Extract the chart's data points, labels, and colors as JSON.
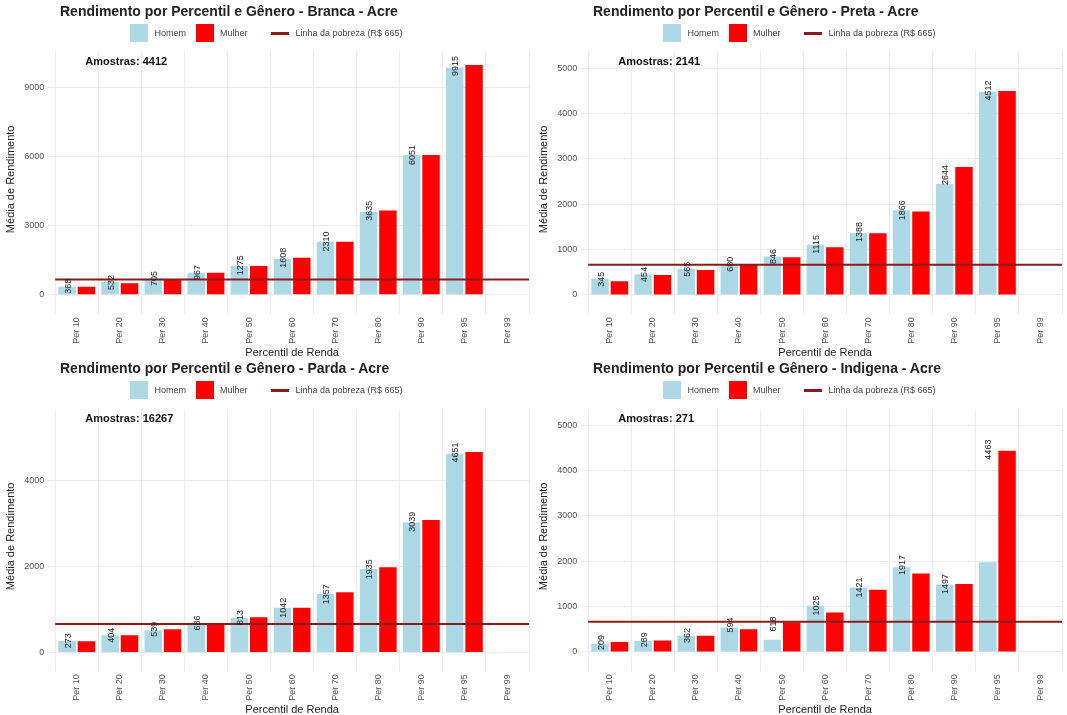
{
  "chart_data": [
    {
      "type": "bar",
      "title": "Rendimento por Percentil e Gênero - Branca - Acre",
      "xlabel": "Percentil de Renda",
      "ylabel": "Média de Rendimento",
      "categories": [
        "Per 10",
        "Per 20",
        "Per 30",
        "Per 40",
        "Per 50",
        "Per 60",
        "Per 70",
        "Per 80",
        "Per 90",
        "Per 95",
        "Per 99"
      ],
      "series": [
        {
          "name": "Homem",
          "color": "#add8e6",
          "values": [
            350,
            550,
            700,
            950,
            1250,
            1550,
            2300,
            3600,
            6050,
            9850,
            null
          ]
        },
        {
          "name": "Mulher",
          "color": "#ff0000",
          "values": [
            350,
            500,
            650,
            950,
            1250,
            1600,
            2300,
            3650,
            6050,
            9950,
            null
          ]
        }
      ],
      "ylim": [
        -500,
        10500
      ],
      "yticks": [
        0,
        3000,
        6000,
        9000
      ],
      "grid": true,
      "legend": "top",
      "ref_lines": [
        {
          "axis": "y",
          "value": 665,
          "label": "Linha da pobreza (R$ 665)",
          "color": "#8b1a1a"
        }
      ],
      "annotations": [
        "Amostras: 4412",
        {
          "text": "368",
          "x": "Per 10",
          "y": 368
        },
        {
          "text": "532",
          "x": "Per 20",
          "y": 532
        },
        {
          "text": "705",
          "x": "Per 30",
          "y": 705
        },
        {
          "text": "967",
          "x": "Per 40",
          "y": 967
        },
        {
          "text": "1275",
          "x": "Per 50",
          "y": 1275
        },
        {
          "text": "1608",
          "x": "Per 60",
          "y": 1608
        },
        {
          "text": "2310",
          "x": "Per 70",
          "y": 2310
        },
        {
          "text": "3635",
          "x": "Per 80",
          "y": 3635
        },
        {
          "text": "6051",
          "x": "Per 90",
          "y": 6051
        },
        {
          "text": "9915",
          "x": "Per 95",
          "y": 9915
        }
      ]
    },
    {
      "type": "bar",
      "title": "Rendimento por Percentil e Gênero - Preta - Acre",
      "xlabel": "Percentil de Renda",
      "ylabel": "Média de Rendimento",
      "categories": [
        "Per 10",
        "Per 20",
        "Per 30",
        "Per 40",
        "Per 50",
        "Per 60",
        "Per 70",
        "Per 80",
        "Per 90",
        "Per 95",
        "Per 99"
      ],
      "series": [
        {
          "name": "Homem",
          "color": "#add8e6",
          "values": [
            350,
            450,
            570,
            660,
            850,
            1110,
            1360,
            1870,
            2450,
            4480,
            null
          ]
        },
        {
          "name": "Mulher",
          "color": "#ff0000",
          "values": [
            300,
            440,
            550,
            660,
            830,
            1050,
            1360,
            1840,
            2820,
            4500,
            null
          ]
        }
      ],
      "ylim": [
        -250,
        5350
      ],
      "yticks": [
        0,
        1000,
        2000,
        3000,
        4000,
        5000
      ],
      "grid": true,
      "legend": "top",
      "ref_lines": [
        {
          "axis": "y",
          "value": 665,
          "label": "Linha da pobreza (R$ 665)",
          "color": "#8b1a1a"
        }
      ],
      "annotations": [
        "Amostras: 2141",
        {
          "text": "345",
          "x": "Per 10",
          "y": 345
        },
        {
          "text": "454",
          "x": "Per 20",
          "y": 454
        },
        {
          "text": "565",
          "x": "Per 30",
          "y": 565
        },
        {
          "text": "680",
          "x": "Per 40",
          "y": 680
        },
        {
          "text": "846",
          "x": "Per 50",
          "y": 846
        },
        {
          "text": "1115",
          "x": "Per 60",
          "y": 1115
        },
        {
          "text": "1388",
          "x": "Per 70",
          "y": 1388
        },
        {
          "text": "1866",
          "x": "Per 80",
          "y": 1866
        },
        {
          "text": "2644",
          "x": "Per 90",
          "y": 2644
        },
        {
          "text": "4512",
          "x": "Per 95",
          "y": 4512
        }
      ]
    },
    {
      "type": "bar",
      "title": "Rendimento por Percentil e Gênero - Parda - Acre",
      "xlabel": "Percentil de Renda",
      "ylabel": "Média de Rendimento",
      "categories": [
        "Per 10",
        "Per 20",
        "Per 30",
        "Per 40",
        "Per 50",
        "Per 60",
        "Per 70",
        "Per 80",
        "Per 90",
        "Per 95",
        "Per 99"
      ],
      "series": [
        {
          "name": "Homem",
          "color": "#add8e6",
          "values": [
            270,
            400,
            520,
            680,
            800,
            1040,
            1360,
            1940,
            3020,
            4620,
            null
          ]
        },
        {
          "name": "Mulher",
          "color": "#ff0000",
          "values": [
            260,
            400,
            540,
            680,
            820,
            1040,
            1400,
            1980,
            3080,
            4660,
            null
          ]
        }
      ],
      "ylim": [
        -250,
        5650
      ],
      "yticks": [
        0,
        2000,
        4000
      ],
      "grid": true,
      "legend": "top",
      "ref_lines": [
        {
          "axis": "y",
          "value": 665,
          "label": "Linha da pobreza (R$ 665)",
          "color": "#8b1a1a"
        }
      ],
      "annotations": [
        "Amostras: 16267",
        {
          "text": "273",
          "x": "Per 10",
          "y": 273
        },
        {
          "text": "404",
          "x": "Per 20",
          "y": 404
        },
        {
          "text": "539",
          "x": "Per 30",
          "y": 539
        },
        {
          "text": "686",
          "x": "Per 40",
          "y": 686
        },
        {
          "text": "813",
          "x": "Per 50",
          "y": 813
        },
        {
          "text": "1042",
          "x": "Per 60",
          "y": 1042
        },
        {
          "text": "1357",
          "x": "Per 70",
          "y": 1357
        },
        {
          "text": "1935",
          "x": "Per 80",
          "y": 1935
        },
        {
          "text": "3039",
          "x": "Per 90",
          "y": 3039
        },
        {
          "text": "4651",
          "x": "Per 95",
          "y": 4651
        }
      ]
    },
    {
      "type": "bar",
      "title": "Rendimento por Percentil e Gênero - Indigena - Acre",
      "xlabel": "Percentil de Renda",
      "ylabel": "Média de Rendimento",
      "categories": [
        "Per 10",
        "Per 20",
        "Per 30",
        "Per 40",
        "Per 50",
        "Per 60",
        "Per 70",
        "Per 80",
        "Per 90",
        "Per 95",
        "Per 99"
      ],
      "series": [
        {
          "name": "Homem",
          "color": "#add8e6",
          "values": [
            180,
            240,
            360,
            540,
            270,
            1020,
            1420,
            1870,
            1490,
            1980,
            null
          ]
        },
        {
          "name": "Mulher",
          "color": "#ff0000",
          "values": [
            220,
            250,
            360,
            500,
            650,
            870,
            1370,
            1730,
            1500,
            4440,
            null
          ]
        }
      ],
      "ylim": [
        -250,
        5350
      ],
      "yticks": [
        0,
        1000,
        2000,
        3000,
        4000,
        5000
      ],
      "grid": true,
      "legend": "top",
      "ref_lines": [
        {
          "axis": "y",
          "value": 665,
          "label": "Linha da pobreza (R$ 665)",
          "color": "#8b1a1a"
        }
      ],
      "annotations": [
        "Amostras: 271",
        {
          "text": "209",
          "x": "Per 10",
          "y": 209
        },
        {
          "text": "269",
          "x": "Per 20",
          "y": 269
        },
        {
          "text": "362",
          "x": "Per 30",
          "y": 362
        },
        {
          "text": "594",
          "x": "Per 40",
          "y": 594
        },
        {
          "text": "618",
          "x": "Per 50",
          "y": 618
        },
        {
          "text": "1025",
          "x": "Per 60",
          "y": 1025
        },
        {
          "text": "1421",
          "x": "Per 70",
          "y": 1421
        },
        {
          "text": "1917",
          "x": "Per 80",
          "y": 1917
        },
        {
          "text": "1497",
          "x": "Per 90",
          "y": 1497
        },
        {
          "text": "4463",
          "x": "Per 95",
          "y": 4463
        }
      ]
    }
  ]
}
